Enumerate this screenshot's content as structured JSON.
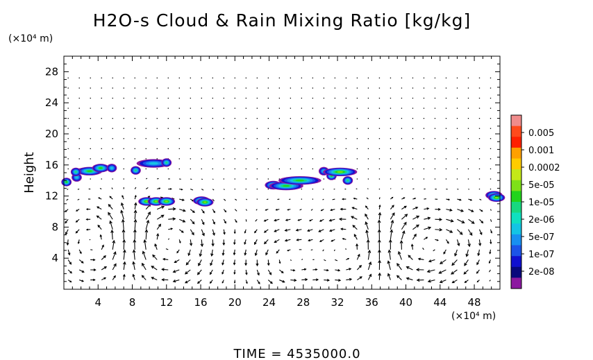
{
  "chart_data": {
    "type": "heatmap",
    "title": "H2O-s Cloud & Rain Mixing Ratio [kg/kg]",
    "ylabel": "Height",
    "y_unit": "(×10⁴ m)",
    "x_unit": "(×10⁴ m)",
    "xlim": [
      0,
      51
    ],
    "ylim": [
      0,
      30
    ],
    "x_ticks": [
      4,
      8,
      12,
      16,
      20,
      24,
      28,
      32,
      36,
      40,
      44,
      48
    ],
    "y_ticks": [
      4,
      8,
      12,
      16,
      20,
      24,
      28
    ],
    "colorbar": {
      "labels": [
        "0.005",
        "0.001",
        "0.0002",
        "5e-05",
        "1e-05",
        "2e-06",
        "5e-07",
        "1e-07",
        "2e-08"
      ],
      "colors": [
        "#f08c8c",
        "#ff4a1c",
        "#ff2000",
        "#ffa000",
        "#ffcc00",
        "#c4e818",
        "#7ee018",
        "#22d41c",
        "#18d880",
        "#10e0c0",
        "#14c4e4",
        "#1890f0",
        "#1c54e8",
        "#1010d0",
        "#08087c",
        "#8c18a0"
      ]
    },
    "series": [
      {
        "values": [
          [
            0.3,
            13.8,
            -0.3,
            1.4
          ],
          [
            1.5,
            14.4,
            -0.2,
            1.0
          ],
          [
            3.0,
            15.2,
            1.5,
            1.4
          ],
          [
            4.3,
            15.6,
            1.0,
            1.4
          ],
          [
            5.6,
            15.6,
            -1.0,
            1.0
          ],
          [
            8.4,
            15.3,
            -1.0,
            1.1
          ],
          [
            10.5,
            16.2,
            2.0,
            1.0
          ],
          [
            12.0,
            16.3,
            0.5,
            1.2
          ],
          [
            1.4,
            15.1,
            0.6,
            1.2
          ]
        ]
      },
      {
        "values": [
          [
            9.7,
            11.3,
            1.0,
            1.5
          ],
          [
            10.8,
            11.3,
            1.0,
            1.5
          ],
          [
            12.0,
            11.3,
            1.0,
            1.5
          ],
          [
            16.1,
            11.4,
            1.0,
            1.5
          ],
          [
            16.5,
            11.2,
            1.0,
            1.5
          ]
        ]
      },
      {
        "values": [
          [
            24.5,
            13.4,
            1.0,
            1.4
          ],
          [
            26.0,
            13.3,
            2.0,
            1.4
          ],
          [
            27.6,
            14.0,
            2.5,
            1.3
          ]
        ]
      },
      {
        "values": [
          [
            30.4,
            15.2,
            0.5,
            1.0
          ],
          [
            31.3,
            14.6,
            -0.5,
            1.4
          ],
          [
            32.3,
            15.1,
            2.0,
            1.5
          ],
          [
            33.2,
            14.0,
            0.5,
            1.2
          ]
        ]
      },
      {
        "values": [
          [
            50.3,
            12.1,
            1.0,
            1.4
          ],
          [
            50.6,
            11.8,
            1.0,
            1.5
          ]
        ]
      }
    ],
    "time_label": "TIME = 4535000.0"
  }
}
